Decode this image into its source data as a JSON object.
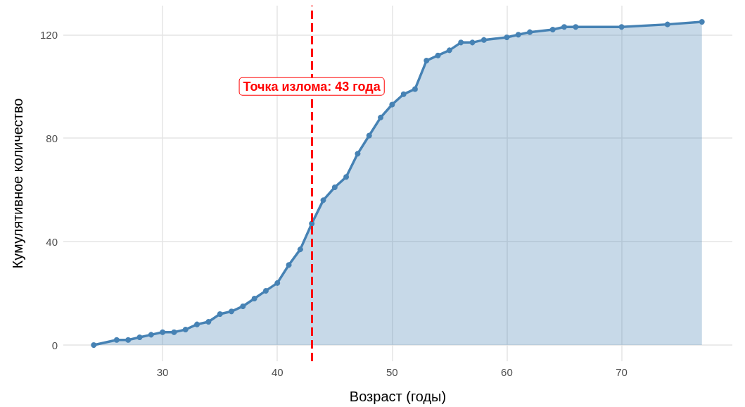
{
  "chart_data": {
    "type": "area",
    "xlabel": "Возраст (годы)",
    "ylabel": "Кумулятивное количество",
    "x": [
      24,
      26,
      27,
      28,
      29,
      30,
      31,
      32,
      33,
      34,
      35,
      36,
      37,
      38,
      39,
      40,
      41,
      42,
      43,
      44,
      45,
      46,
      47,
      48,
      49,
      50,
      51,
      52,
      53,
      54,
      55,
      56,
      57,
      58,
      60,
      61,
      62,
      64,
      65,
      66,
      70,
      74,
      77
    ],
    "series": [
      {
        "color": "#4682b4",
        "values": [
          0,
          2,
          2,
          3,
          4,
          5,
          5,
          6,
          8,
          9,
          12,
          13,
          15,
          18,
          21,
          24,
          31,
          37,
          47,
          56,
          61,
          65,
          74,
          81,
          88,
          93,
          97,
          99,
          110,
          112,
          114,
          117,
          117,
          118,
          119,
          120,
          121,
          122,
          123,
          123,
          123,
          124,
          125
        ]
      }
    ],
    "xlim": [
      21.35,
      79.65
    ],
    "xticks": [
      30,
      40,
      50,
      60,
      70
    ],
    "ylim": [
      -6.25,
      131.25
    ],
    "yticks": [
      0,
      40,
      80,
      120
    ],
    "grid": true,
    "marker": "circle",
    "line_style": "solid",
    "ref_lines": [
      {
        "axis": "x",
        "value": 43,
        "color": "#ff0000",
        "line_style": "dashed"
      }
    ],
    "annotations": [
      {
        "text": "Точка излома: 43 года",
        "x": 43,
        "y": 100
      }
    ]
  }
}
